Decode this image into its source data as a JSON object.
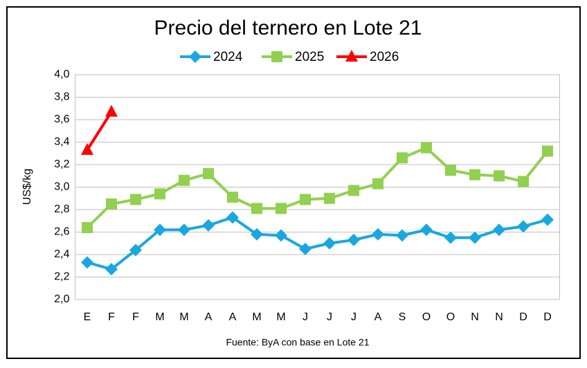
{
  "chart_data": {
    "type": "line",
    "title": "Precio del ternero en Lote 21",
    "y_label": "US$/kg",
    "source": "Fuente: ByA con base en Lote 21",
    "categories": [
      "E",
      "F",
      "F",
      "M",
      "M",
      "A",
      "A",
      "M",
      "M",
      "J",
      "J",
      "J",
      "A",
      "S",
      "O",
      "O",
      "N",
      "N",
      "D",
      "D"
    ],
    "series": [
      {
        "name": "2024",
        "color": "#1aa7e0",
        "marker": "diamond",
        "values": [
          2.33,
          2.27,
          2.44,
          2.62,
          2.62,
          2.66,
          2.73,
          2.58,
          2.57,
          2.45,
          2.5,
          2.53,
          2.58,
          2.57,
          2.62,
          2.55,
          2.55,
          2.62,
          2.65,
          2.71
        ]
      },
      {
        "name": "2025",
        "color": "#92d050",
        "marker": "square",
        "values": [
          2.64,
          2.85,
          2.89,
          2.94,
          3.06,
          3.12,
          2.91,
          2.81,
          2.81,
          2.89,
          2.9,
          2.97,
          3.03,
          3.26,
          3.35,
          3.15,
          3.11,
          3.1,
          3.05,
          3.32
        ]
      },
      {
        "name": "2026",
        "color": "#ff0000",
        "marker": "triangle",
        "values": [
          3.33,
          3.67,
          null,
          null,
          null,
          null,
          null,
          null,
          null,
          null,
          null,
          null,
          null,
          null,
          null,
          null,
          null,
          null,
          null,
          null
        ]
      }
    ],
    "ylim": [
      2.0,
      4.0
    ],
    "yticks": [
      {
        "value": 2.0,
        "label": "2,0"
      },
      {
        "value": 2.2,
        "label": "2,2"
      },
      {
        "value": 2.4,
        "label": "2,4"
      },
      {
        "value": 2.6,
        "label": "2,6"
      },
      {
        "value": 2.8,
        "label": "2,8"
      },
      {
        "value": 3.0,
        "label": "3,0"
      },
      {
        "value": 3.2,
        "label": "3,2"
      },
      {
        "value": 3.4,
        "label": "3,4"
      },
      {
        "value": 3.6,
        "label": "3,6"
      },
      {
        "value": 3.8,
        "label": "3,8"
      },
      {
        "value": 4.0,
        "label": "4,0"
      }
    ],
    "grid": true,
    "legend": "top"
  }
}
